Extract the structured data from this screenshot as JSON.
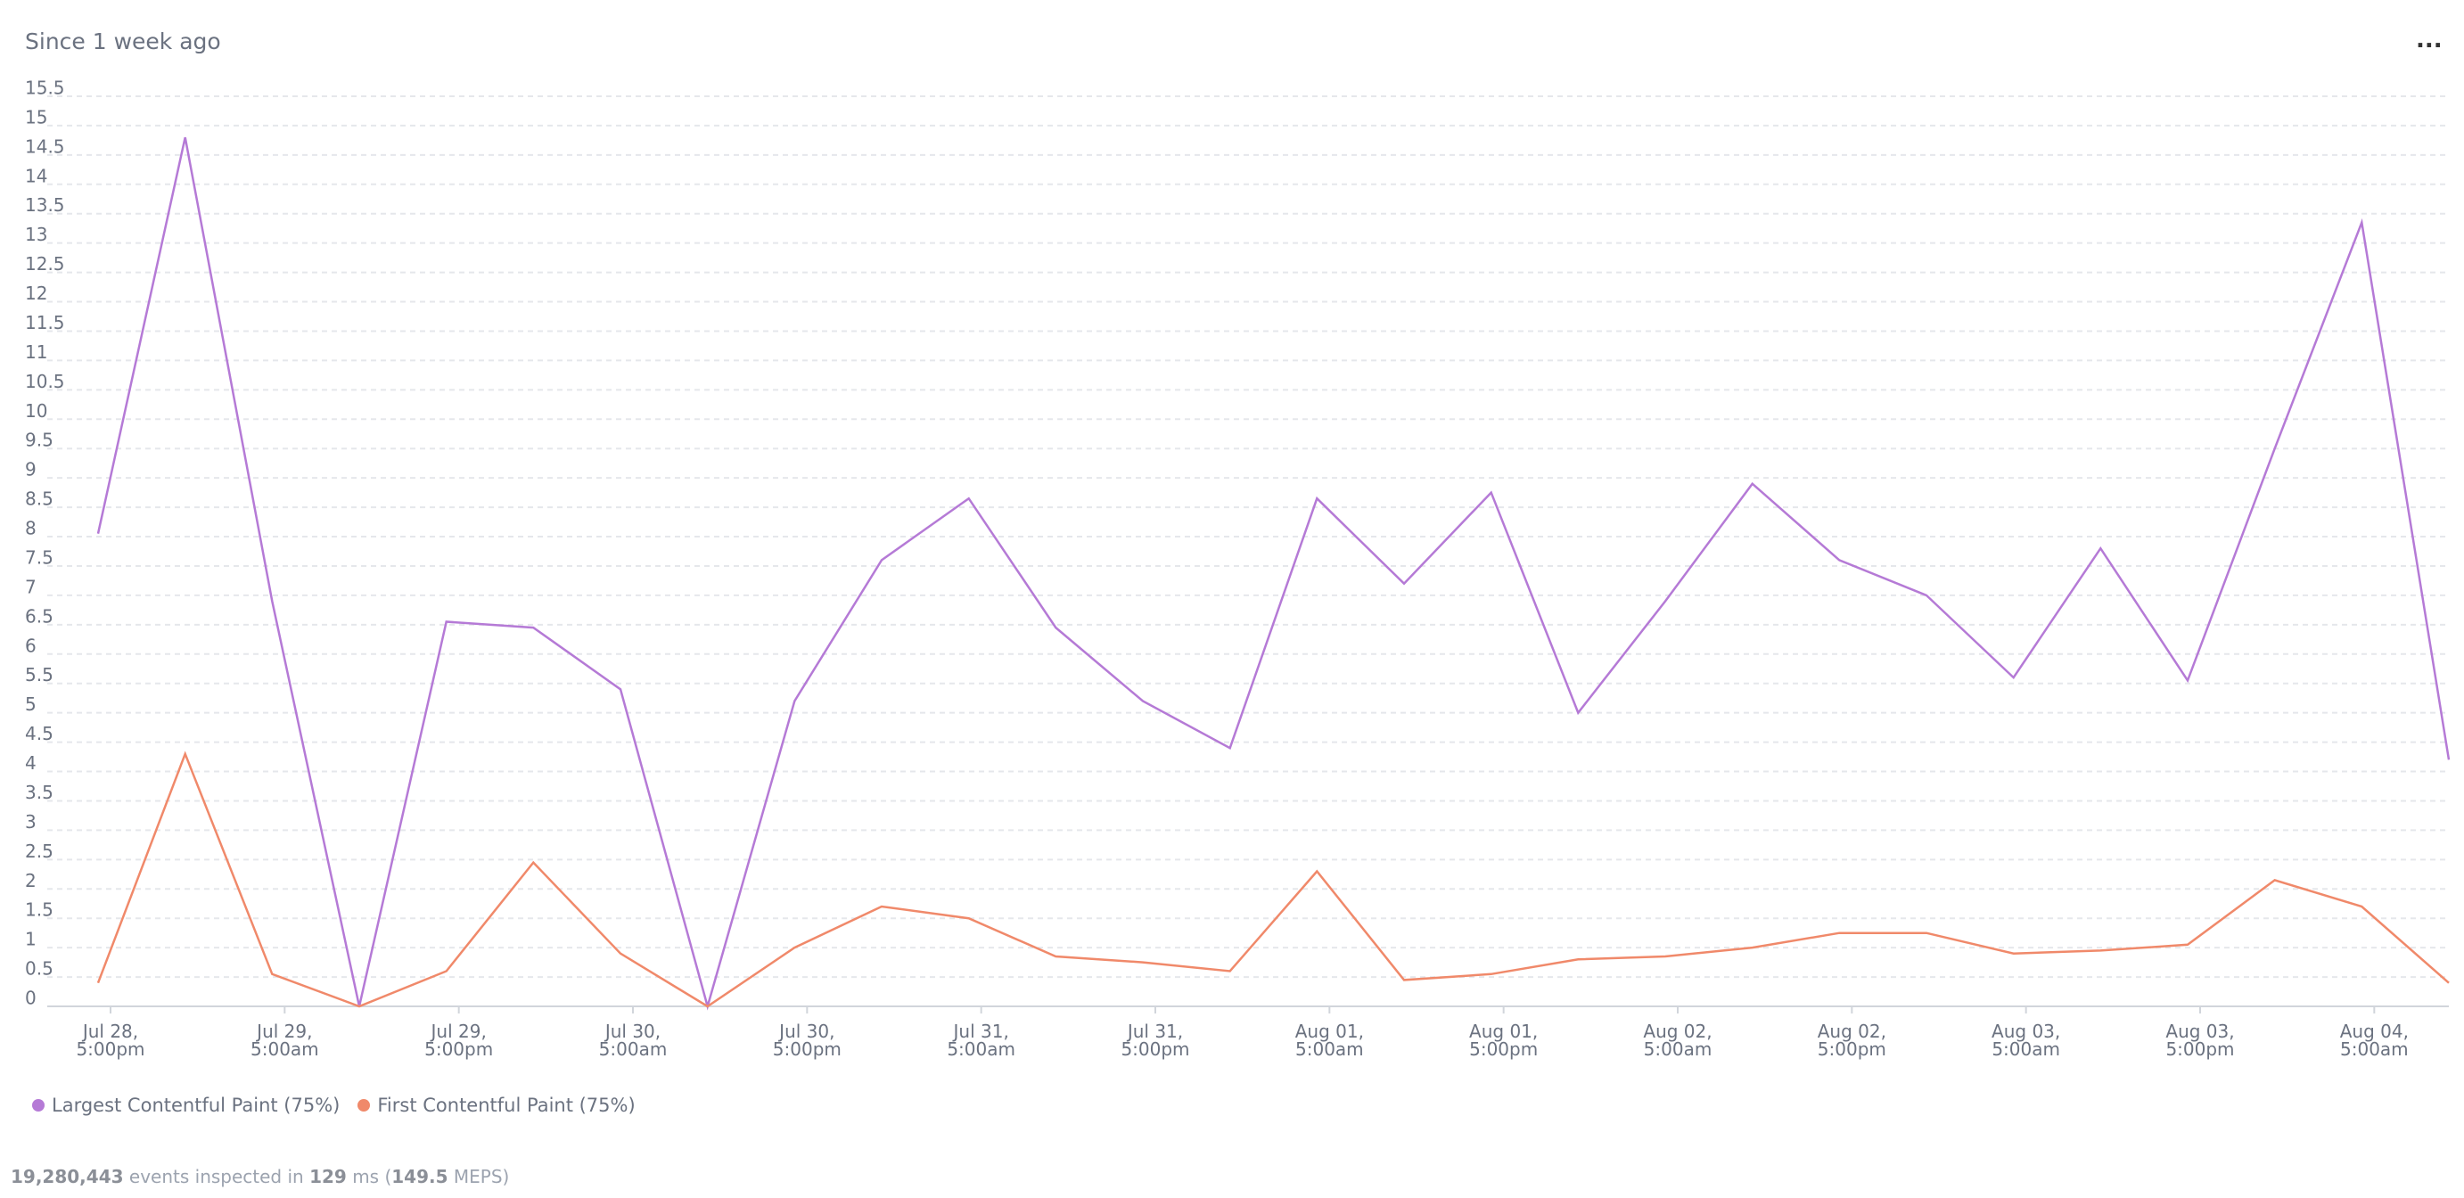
{
  "chart_data": {
    "type": "line",
    "title": "Since 1 week ago",
    "menu": "...",
    "categories": [
      "Jul 28,\n5:00pm",
      null,
      "Jul 29,\n5:00am",
      null,
      "Jul 29,\n5:00pm",
      null,
      "Jul 30,\n5:00am",
      null,
      "Jul 30,\n5:00pm",
      null,
      "Jul 31,\n5:00am",
      null,
      "Jul 31,\n5:00pm",
      null,
      "Aug 01,\n5:00am",
      null,
      "Aug 01,\n5:00pm",
      null,
      "Aug 02,\n5:00am",
      null,
      "Aug 02,\n5:00pm",
      null,
      "Aug 03,\n5:00am",
      null,
      "Aug 03,\n5:00pm",
      null,
      "Aug 04,\n5:00am",
      null
    ],
    "series": [
      {
        "name": "Largest Contentful Paint (75%)",
        "color": "#b57ad6",
        "values": [
          8.05,
          14.8,
          6.9,
          0,
          6.55,
          6.45,
          5.4,
          0,
          5.2,
          7.6,
          8.65,
          6.45,
          5.2,
          4.4,
          8.65,
          7.2,
          8.75,
          5.0,
          6.9,
          8.9,
          7.6,
          7.0,
          5.6,
          7.8,
          5.55,
          9.5,
          13.35,
          4.2
        ]
      },
      {
        "name": "First Contentful Paint (75%)",
        "color": "#f0896a",
        "values": [
          0.4,
          4.3,
          0.55,
          0,
          0.6,
          2.45,
          0.9,
          0,
          1.0,
          1.7,
          1.5,
          0.85,
          0.75,
          0.6,
          2.3,
          0.45,
          0.55,
          0.8,
          0.85,
          1.0,
          1.25,
          1.25,
          0.9,
          0.95,
          1.05,
          2.15,
          1.7,
          0.4
        ]
      }
    ],
    "ylim": [
      0,
      15.5
    ],
    "yticks": [
      0,
      0.5,
      1,
      1.5,
      2,
      2.5,
      3,
      3.5,
      4,
      4.5,
      5,
      5.5,
      6,
      6.5,
      7,
      7.5,
      8,
      8.5,
      9,
      9.5,
      10,
      10.5,
      11,
      11.5,
      12,
      12.5,
      13,
      13.5,
      14,
      14.5,
      15,
      15.5
    ],
    "grid": true,
    "footer": [
      "19,280,443",
      "events inspected in",
      "129",
      "ms (",
      "149.5",
      "MEPS)"
    ]
  }
}
